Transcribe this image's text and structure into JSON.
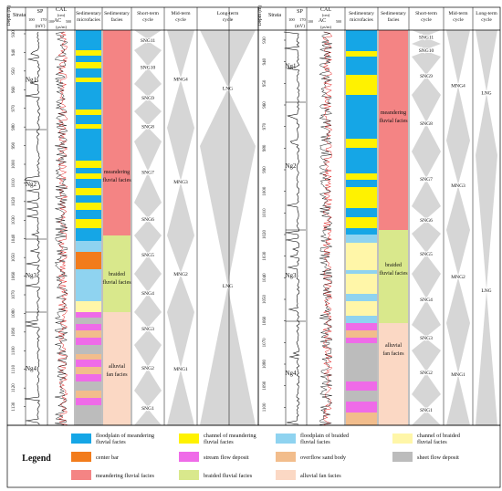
{
  "colors": {
    "floodplain_meandering": "#15a6e6",
    "channel_meandering": "#fff200",
    "floodplain_braided": "#8fd3f0",
    "channel_braided": "#fff6a8",
    "center_bar": "#f27c1c",
    "stream_flow": "#ef6be8",
    "overflow_sand": "#f2bd8c",
    "sheet_flow": "#bcbcbc",
    "meandering_facies": "#f48484",
    "braided_facies": "#d9e88c",
    "alluvial_facies": "#fbd8c4",
    "cycle_triangle": "#d6d6d6",
    "log_black": "#000000",
    "log_red": "#e00000"
  },
  "headers": {
    "depth": "Depth (m)",
    "strata": "Strata",
    "sp": "SP",
    "sp_unit": "(mV)",
    "sp_min": "100",
    "sp_max": "170",
    "cal": "CAL",
    "cal_unit": "(cm)",
    "ac": "AC",
    "ac_unit": "(μs/m)",
    "ac_min": "100",
    "ac_max": "500",
    "microfacies": "Sedimentary microfacies",
    "facies": "Sedimentary facies",
    "short_cycle": "Short-term cycle",
    "mid_cycle": "Mid-term cycle",
    "long_cycle": "Long-term cycle"
  },
  "wells": [
    {
      "depth_ticks": [
        "930",
        "940",
        "950",
        "960",
        "970",
        "980",
        "990",
        "1000",
        "1010",
        "1020",
        "1030",
        "1040",
        "1050",
        "1060",
        "1070",
        "1080",
        "1090",
        "1100",
        "1110",
        "1120",
        "1130",
        "1140"
      ],
      "strata": [
        "Ng1",
        "Ng2",
        "Ng3",
        "Ng4"
      ],
      "facies": [
        {
          "lines": [
            "meandering",
            "fluvial facies"
          ]
        },
        {
          "lines": [
            "braided",
            "fluvial facies"
          ]
        },
        {
          "lines": [
            "alluvial",
            "fan facies"
          ]
        }
      ],
      "short_cycles": [
        "SNG11",
        "SNG10",
        "SNG9",
        "SNG8",
        "SNG7",
        "SNG6",
        "SNG5",
        "SNG4",
        "SNG3",
        "SNG2",
        "SNG1"
      ],
      "mid_cycles": [
        "MNG4",
        "MNG3",
        "MNG2",
        "MNG1"
      ],
      "long_cycles": [
        "LNG",
        "LNG"
      ]
    },
    {
      "depth_ticks": [
        "930",
        "940",
        "950",
        "960",
        "970",
        "980",
        "990",
        "1000",
        "1010",
        "1020",
        "1030",
        "1040",
        "1050",
        "1060",
        "1070",
        "1080",
        "1090",
        "1100",
        "1110"
      ],
      "strata": [
        "Ng1",
        "Ng2",
        "Ng3",
        "Ng4"
      ],
      "facies": [
        {
          "lines": [
            "meandering",
            "fluvial facies"
          ]
        },
        {
          "lines": [
            "braided",
            "fluvial facies"
          ]
        },
        {
          "lines": [
            "alluvial",
            "fan facies"
          ]
        }
      ],
      "short_cycles": [
        "SNG11",
        "SNG10",
        "SNG9",
        "SNG8",
        "SNG7",
        "SNG6",
        "SNG5",
        "SNG4",
        "SNG3",
        "SNG2",
        "SNG1"
      ],
      "mid_cycles": [
        "MNG4",
        "MNG3",
        "MNG2",
        "MNG1"
      ],
      "long_cycles": [
        "LNG",
        "LNG"
      ]
    }
  ],
  "legend": {
    "title": "Legend",
    "items": [
      {
        "label": [
          "floodplain of meandering",
          "fluvial facies"
        ],
        "color_key": "floodplain_meandering"
      },
      {
        "label": [
          "channel of meandering",
          "fluvial facies"
        ],
        "color_key": "channel_meandering"
      },
      {
        "label": [
          "floodplain of braided",
          "fluvial facies"
        ],
        "color_key": "floodplain_braided"
      },
      {
        "label": [
          "channel of braided",
          "fluvial facies"
        ],
        "color_key": "channel_braided"
      },
      {
        "label": [
          "center bar"
        ],
        "color_key": "center_bar"
      },
      {
        "label": [
          "stream flow deposit"
        ],
        "color_key": "stream_flow"
      },
      {
        "label": [
          "overflow sand body"
        ],
        "color_key": "overflow_sand"
      },
      {
        "label": [
          "sheet flow deposit"
        ],
        "color_key": "sheet_flow"
      },
      {
        "label": [
          "meandering fluvial facies"
        ],
        "color_key": "meandering_facies"
      },
      {
        "label": [
          "braided fluvial facies"
        ],
        "color_key": "braided_facies"
      },
      {
        "label": [
          "alluvial fan facies"
        ],
        "color_key": "alluvial_facies"
      }
    ]
  }
}
